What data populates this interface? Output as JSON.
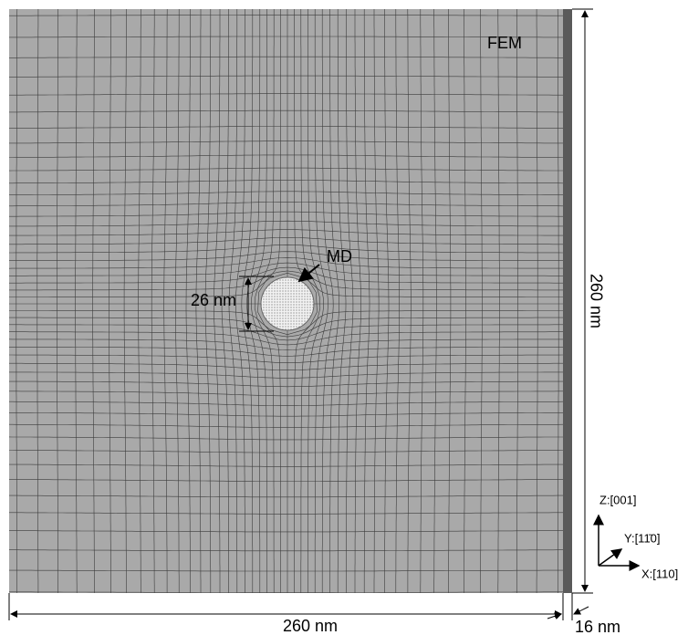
{
  "labels": {
    "fem": "FEM",
    "md": "MD",
    "diameter": "26 nm",
    "height": "260 nm",
    "width": "260 nm",
    "thickness": "16 nm"
  },
  "axes": {
    "z": "Z:[001]",
    "y": "Y:[11̄0]",
    "x": "X:[110]"
  }
}
